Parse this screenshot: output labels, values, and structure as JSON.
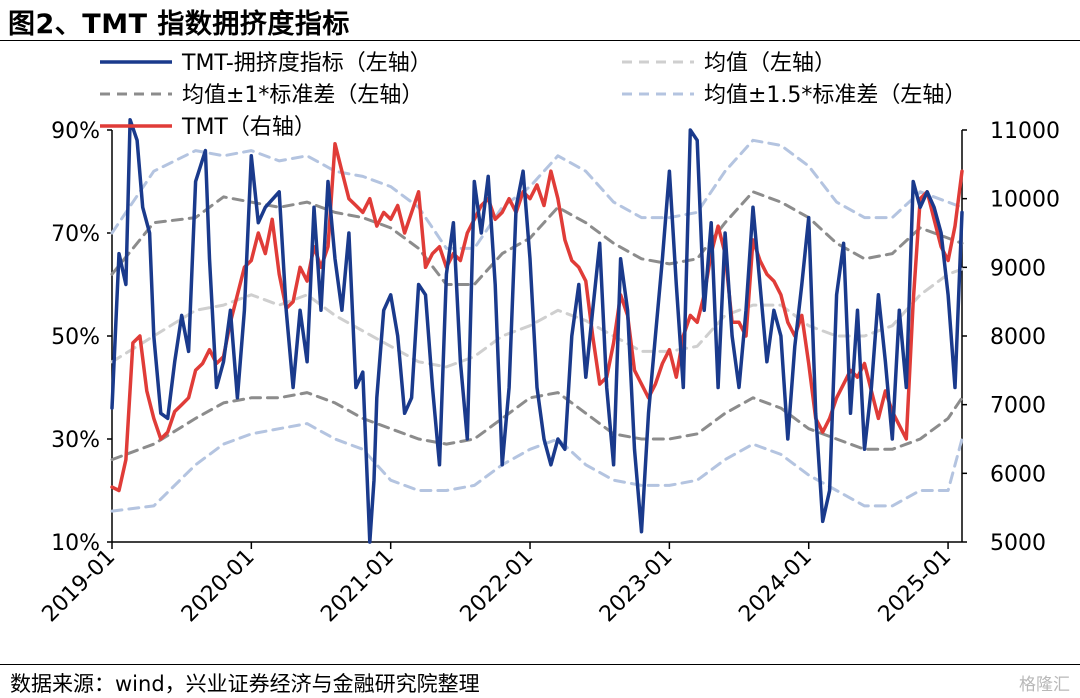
{
  "figure_title": "图2、TMT 指数拥挤度指标",
  "source": "数据来源：wind，兴业证券经济与金融研究院整理",
  "watermark": "格隆汇",
  "colors": {
    "crowding": "#1a3a8c",
    "mean": "#cfcfcf",
    "band1": "#8c8c8c",
    "band15": "#b4c4e0",
    "tmt": "#e03c38"
  },
  "chart_data": {
    "type": "line",
    "title": "TMT 指数拥挤度指标",
    "x_tick_labels": [
      "2019-01",
      "2020-01",
      "2021-01",
      "2022-01",
      "2023-01",
      "2024-01",
      "2025-01"
    ],
    "x_range": [
      2019.0,
      2025.1
    ],
    "left_axis": {
      "ylim": [
        10,
        90
      ],
      "ticks": [
        10,
        30,
        50,
        70,
        90
      ],
      "tick_labels": [
        "10%",
        "30%",
        "50%",
        "70%",
        "90%"
      ]
    },
    "right_axis": {
      "ylim": [
        5000,
        11000
      ],
      "ticks": [
        5000,
        6000,
        7000,
        8000,
        9000,
        10000,
        11000
      ],
      "tick_labels": [
        "5000",
        "6000",
        "7000",
        "8000",
        "9000",
        "10000",
        "11000"
      ]
    },
    "legend": [
      {
        "key": "crowding",
        "label": "TMT-拥挤度指标（左轴）"
      },
      {
        "key": "mean",
        "label": "均值（左轴）"
      },
      {
        "key": "band1",
        "label": "均值±1*标准差（左轴）"
      },
      {
        "key": "band15",
        "label": "均值±1.5*标准差（左轴）"
      },
      {
        "key": "tmt",
        "label": "TMT（右轴）"
      }
    ],
    "series": [
      {
        "key": "crowding",
        "name": "TMT-拥挤度指标（左轴）",
        "axis": "left",
        "style": "solid",
        "x": [
          2019.0,
          2019.05,
          2019.1,
          2019.13,
          2019.18,
          2019.22,
          2019.27,
          2019.3,
          2019.35,
          2019.4,
          2019.45,
          2019.5,
          2019.55,
          2019.6,
          2019.67,
          2019.7,
          2019.75,
          2019.8,
          2019.85,
          2019.9,
          2019.95,
          2020.0,
          2020.05,
          2020.1,
          2020.2,
          2020.25,
          2020.3,
          2020.35,
          2020.4,
          2020.45,
          2020.5,
          2020.55,
          2020.6,
          2020.65,
          2020.7,
          2020.75,
          2020.8,
          2020.85,
          2020.88,
          2020.9,
          2020.95,
          2021.0,
          2021.05,
          2021.1,
          2021.15,
          2021.2,
          2021.25,
          2021.3,
          2021.35,
          2021.4,
          2021.45,
          2021.5,
          2021.55,
          2021.6,
          2021.65,
          2021.7,
          2021.75,
          2021.8,
          2021.85,
          2021.9,
          2021.95,
          2022.0,
          2022.05,
          2022.1,
          2022.15,
          2022.2,
          2022.25,
          2022.3,
          2022.35,
          2022.4,
          2022.45,
          2022.5,
          2022.55,
          2022.6,
          2022.65,
          2022.7,
          2022.75,
          2022.8,
          2022.85,
          2022.9,
          2022.95,
          2023.0,
          2023.05,
          2023.1,
          2023.15,
          2023.2,
          2023.25,
          2023.3,
          2023.35,
          2023.4,
          2023.45,
          2023.5,
          2023.55,
          2023.6,
          2023.65,
          2023.7,
          2023.75,
          2023.8,
          2023.85,
          2023.9,
          2023.95,
          2024.0,
          2024.05,
          2024.1,
          2024.15,
          2024.2,
          2024.25,
          2024.3,
          2024.35,
          2024.4,
          2024.45,
          2024.5,
          2024.55,
          2024.6,
          2024.65,
          2024.7,
          2024.75,
          2024.8,
          2024.85,
          2024.9,
          2024.95,
          2025.0,
          2025.05,
          2025.1
        ],
        "y": [
          36,
          66,
          60,
          92,
          88,
          75,
          70,
          50,
          35,
          34,
          45,
          54,
          47,
          80,
          86,
          65,
          40,
          45,
          55,
          38,
          55,
          85,
          72,
          75,
          78,
          55,
          40,
          55,
          45,
          75,
          55,
          80,
          65,
          55,
          70,
          40,
          43,
          10,
          22,
          38,
          55,
          58,
          50,
          35,
          38,
          60,
          58,
          40,
          25,
          62,
          72,
          45,
          30,
          80,
          70,
          81,
          60,
          25,
          40,
          75,
          82,
          65,
          40,
          30,
          25,
          30,
          28,
          50,
          60,
          42,
          55,
          68,
          40,
          25,
          65,
          55,
          28,
          12,
          35,
          50,
          65,
          82,
          60,
          40,
          90,
          88,
          55,
          72,
          40,
          70,
          50,
          40,
          55,
          75,
          60,
          45,
          55,
          50,
          30,
          48,
          60,
          73,
          35,
          14,
          20,
          58,
          68,
          35,
          55,
          28,
          40,
          58,
          45,
          30,
          55,
          40,
          80,
          75,
          78,
          75,
          70,
          58,
          40,
          74
        ]
      },
      {
        "key": "mean",
        "name": "均值（左轴）",
        "axis": "left",
        "style": "dashed",
        "x": [
          2019.0,
          2019.3,
          2019.6,
          2019.8,
          2020.0,
          2020.2,
          2020.4,
          2020.6,
          2020.8,
          2021.0,
          2021.2,
          2021.4,
          2021.6,
          2021.8,
          2022.0,
          2022.2,
          2022.4,
          2022.6,
          2022.8,
          2023.0,
          2023.2,
          2023.4,
          2023.6,
          2023.8,
          2024.0,
          2024.2,
          2024.4,
          2024.6,
          2024.8,
          2025.0,
          2025.1
        ],
        "y": [
          45,
          50,
          55,
          56,
          58,
          56,
          58,
          54,
          51,
          48,
          45,
          44,
          46,
          50,
          52,
          55,
          53,
          50,
          47,
          47,
          48,
          54,
          56,
          56,
          52,
          50,
          50,
          52,
          58,
          62,
          63
        ]
      },
      {
        "key": "band1",
        "name": "均值+1*标准差（左轴）",
        "axis": "left",
        "style": "dashed",
        "x": [
          2019.0,
          2019.3,
          2019.6,
          2019.8,
          2020.0,
          2020.2,
          2020.4,
          2020.6,
          2020.8,
          2021.0,
          2021.2,
          2021.4,
          2021.6,
          2021.8,
          2022.0,
          2022.2,
          2022.4,
          2022.6,
          2022.8,
          2023.0,
          2023.2,
          2023.4,
          2023.6,
          2023.8,
          2024.0,
          2024.2,
          2024.4,
          2024.6,
          2024.8,
          2025.0,
          2025.1
        ],
        "y": [
          62,
          72,
          73,
          77,
          76,
          75,
          76,
          74,
          73,
          71,
          67,
          60,
          60,
          66,
          69,
          75,
          72,
          68,
          65,
          64,
          65,
          72,
          78,
          76,
          73,
          68,
          65,
          66,
          71,
          69,
          68
        ]
      },
      {
        "key": "band1",
        "name": "均值-1*标准差（左轴）",
        "axis": "left",
        "style": "dashed",
        "x": [
          2019.0,
          2019.3,
          2019.6,
          2019.8,
          2020.0,
          2020.2,
          2020.4,
          2020.6,
          2020.8,
          2021.0,
          2021.2,
          2021.4,
          2021.6,
          2021.8,
          2022.0,
          2022.2,
          2022.4,
          2022.6,
          2022.8,
          2023.0,
          2023.2,
          2023.4,
          2023.6,
          2023.8,
          2024.0,
          2024.2,
          2024.4,
          2024.6,
          2024.8,
          2025.0,
          2025.1
        ],
        "y": [
          26,
          29,
          34,
          37,
          38,
          38,
          39,
          37,
          34,
          32,
          30,
          29,
          30,
          34,
          38,
          39,
          35,
          31,
          30,
          30,
          31,
          35,
          38,
          36,
          32,
          30,
          28,
          28,
          30,
          34,
          38
        ]
      },
      {
        "key": "band15",
        "name": "均值+1.5*标准差（左轴）",
        "axis": "left",
        "style": "dashed",
        "x": [
          2019.0,
          2019.3,
          2019.6,
          2019.8,
          2020.0,
          2020.2,
          2020.4,
          2020.6,
          2020.8,
          2021.0,
          2021.2,
          2021.4,
          2021.6,
          2021.8,
          2022.0,
          2022.2,
          2022.4,
          2022.6,
          2022.8,
          2023.0,
          2023.2,
          2023.4,
          2023.6,
          2023.8,
          2024.0,
          2024.2,
          2024.4,
          2024.6,
          2024.8,
          2025.0,
          2025.1
        ],
        "y": [
          70,
          82,
          86,
          85,
          86,
          84,
          85,
          82,
          81,
          79,
          75,
          67,
          67,
          75,
          79,
          85,
          82,
          76,
          73,
          73,
          74,
          82,
          88,
          87,
          83,
          76,
          73,
          73,
          78,
          76,
          75
        ]
      },
      {
        "key": "band15",
        "name": "均值-1.5*标准差（左轴）",
        "axis": "left",
        "style": "dashed",
        "x": [
          2019.0,
          2019.3,
          2019.6,
          2019.8,
          2020.0,
          2020.2,
          2020.4,
          2020.6,
          2020.8,
          2021.0,
          2021.2,
          2021.4,
          2021.6,
          2021.8,
          2022.0,
          2022.2,
          2022.4,
          2022.6,
          2022.8,
          2023.0,
          2023.2,
          2023.4,
          2023.6,
          2023.8,
          2024.0,
          2024.2,
          2024.4,
          2024.6,
          2024.8,
          2025.0,
          2025.1
        ],
        "y": [
          16,
          17,
          25,
          29,
          31,
          32,
          33,
          30,
          28,
          22,
          20,
          20,
          21,
          25,
          28,
          30,
          25,
          22,
          21,
          21,
          22,
          26,
          29,
          27,
          23,
          20,
          17,
          17,
          20,
          20,
          30
        ]
      },
      {
        "key": "tmt",
        "name": "TMT（右轴）",
        "axis": "right",
        "style": "solid",
        "x": [
          2019.0,
          2019.05,
          2019.1,
          2019.15,
          2019.2,
          2019.25,
          2019.3,
          2019.35,
          2019.4,
          2019.45,
          2019.5,
          2019.55,
          2019.6,
          2019.65,
          2019.7,
          2019.75,
          2019.8,
          2019.85,
          2019.9,
          2019.95,
          2020.0,
          2020.05,
          2020.1,
          2020.15,
          2020.2,
          2020.25,
          2020.3,
          2020.35,
          2020.4,
          2020.45,
          2020.5,
          2020.55,
          2020.6,
          2020.65,
          2020.7,
          2020.75,
          2020.8,
          2020.85,
          2020.9,
          2020.95,
          2021.0,
          2021.05,
          2021.1,
          2021.15,
          2021.2,
          2021.25,
          2021.3,
          2021.35,
          2021.4,
          2021.45,
          2021.5,
          2021.55,
          2021.6,
          2021.65,
          2021.7,
          2021.75,
          2021.8,
          2021.85,
          2021.9,
          2021.95,
          2022.0,
          2022.05,
          2022.1,
          2022.15,
          2022.2,
          2022.25,
          2022.3,
          2022.35,
          2022.4,
          2022.45,
          2022.5,
          2022.55,
          2022.6,
          2022.65,
          2022.7,
          2022.75,
          2022.8,
          2022.85,
          2022.9,
          2022.95,
          2023.0,
          2023.05,
          2023.1,
          2023.15,
          2023.2,
          2023.25,
          2023.3,
          2023.35,
          2023.4,
          2023.45,
          2023.5,
          2023.55,
          2023.6,
          2023.65,
          2023.7,
          2023.75,
          2023.8,
          2023.85,
          2023.9,
          2023.95,
          2024.0,
          2024.05,
          2024.1,
          2024.15,
          2024.2,
          2024.25,
          2024.3,
          2024.35,
          2024.4,
          2024.45,
          2024.5,
          2024.55,
          2024.6,
          2024.65,
          2024.7,
          2024.75,
          2024.8,
          2024.85,
          2024.9,
          2024.95,
          2025.0,
          2025.05,
          2025.1
        ],
        "y": [
          5800,
          5750,
          6200,
          7900,
          8000,
          7200,
          6800,
          6500,
          6600,
          6900,
          7000,
          7100,
          7500,
          7600,
          7800,
          7600,
          7700,
          8200,
          8600,
          9000,
          9100,
          9500,
          9200,
          9700,
          8900,
          8400,
          8500,
          9000,
          8800,
          9300,
          9000,
          9300,
          10800,
          10400,
          10000,
          9900,
          9800,
          10000,
          9600,
          9800,
          9700,
          9900,
          9500,
          9800,
          10100,
          9000,
          9200,
          9300,
          9000,
          9200,
          9100,
          9500,
          9700,
          9900,
          10000,
          9700,
          9800,
          10000,
          9800,
          10100,
          10000,
          10200,
          9900,
          10400,
          10000,
          9400,
          9100,
          9000,
          8800,
          8000,
          7300,
          7400,
          7900,
          8600,
          8300,
          7500,
          7300,
          7100,
          7300,
          7600,
          7800,
          7400,
          8000,
          8300,
          8200,
          8600,
          9200,
          9600,
          9200,
          8200,
          8200,
          8000,
          9400,
          9100,
          8900,
          8800,
          8600,
          8200,
          8000,
          8300,
          7600,
          6800,
          6600,
          6800,
          7100,
          7300,
          7500,
          7400,
          7600,
          7200,
          6800,
          7200,
          6900,
          6700,
          6500,
          8500,
          10000,
          10100,
          9700,
          9300,
          9100,
          9600,
          10400
        ]
      }
    ]
  }
}
